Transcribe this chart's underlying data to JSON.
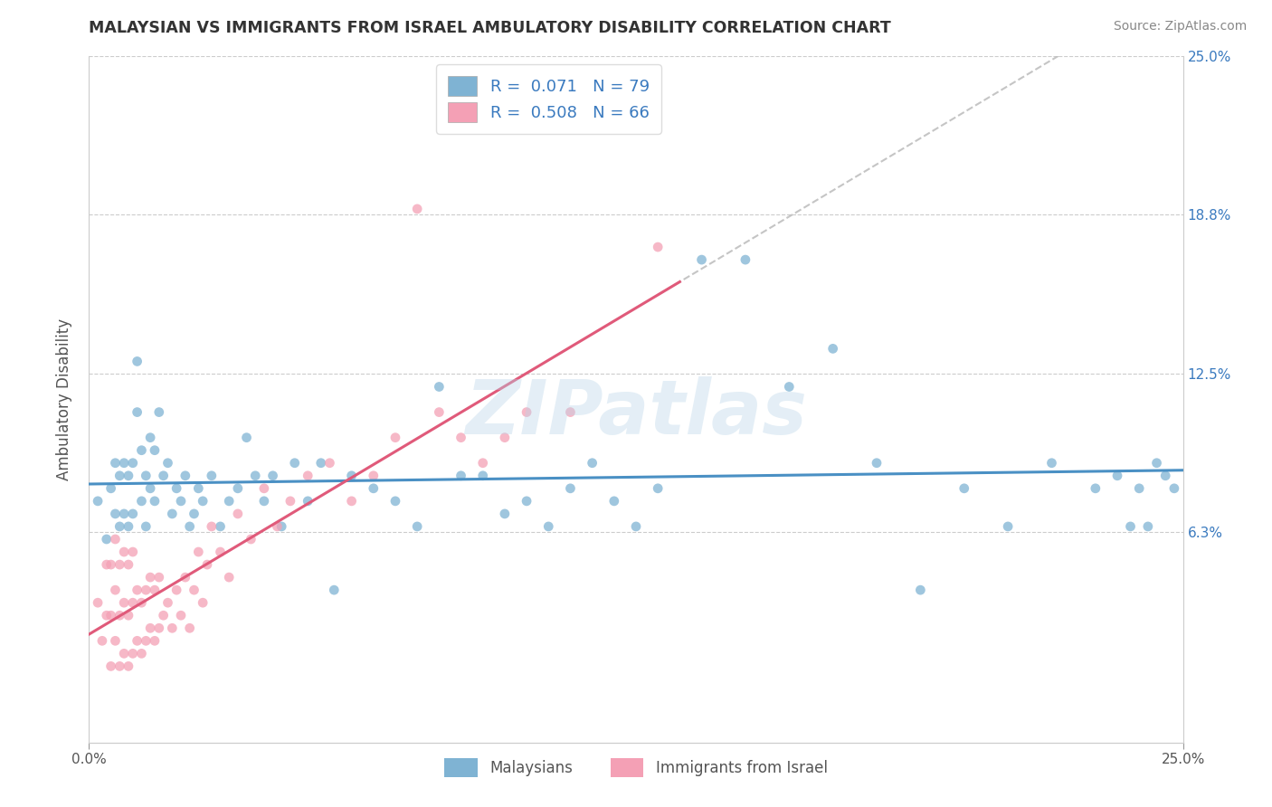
{
  "title": "MALAYSIAN VS IMMIGRANTS FROM ISRAEL AMBULATORY DISABILITY CORRELATION CHART",
  "source": "Source: ZipAtlas.com",
  "ylabel": "Ambulatory Disability",
  "xmin": 0.0,
  "xmax": 0.25,
  "ymin": -0.02,
  "ymax": 0.25,
  "ytick_values": [
    0.063,
    0.125,
    0.188,
    0.25
  ],
  "ytick_labels": [
    "6.3%",
    "12.5%",
    "18.8%",
    "25.0%"
  ],
  "legend_label1": "Malaysians",
  "legend_label2": "Immigrants from Israel",
  "R1": 0.071,
  "N1": 79,
  "R2": 0.508,
  "N2": 66,
  "color_blue": "#7fb3d3",
  "color_pink": "#f4a0b5",
  "color_blue_line": "#4a90c4",
  "color_pink_line": "#e05a7a",
  "color_blue_text": "#3a7abf",
  "watermark": "ZIPatlas",
  "background_color": "#ffffff",
  "grid_color": "#cccccc",
  "blue_x": [
    0.002,
    0.004,
    0.005,
    0.006,
    0.006,
    0.007,
    0.007,
    0.008,
    0.008,
    0.009,
    0.009,
    0.01,
    0.01,
    0.011,
    0.011,
    0.012,
    0.012,
    0.013,
    0.013,
    0.014,
    0.014,
    0.015,
    0.015,
    0.016,
    0.017,
    0.018,
    0.019,
    0.02,
    0.021,
    0.022,
    0.023,
    0.024,
    0.025,
    0.026,
    0.028,
    0.03,
    0.032,
    0.034,
    0.036,
    0.038,
    0.04,
    0.042,
    0.044,
    0.047,
    0.05,
    0.053,
    0.056,
    0.06,
    0.065,
    0.07,
    0.075,
    0.08,
    0.085,
    0.09,
    0.095,
    0.1,
    0.105,
    0.11,
    0.115,
    0.12,
    0.125,
    0.13,
    0.14,
    0.15,
    0.16,
    0.17,
    0.18,
    0.19,
    0.2,
    0.21,
    0.22,
    0.23,
    0.235,
    0.238,
    0.24,
    0.242,
    0.244,
    0.246,
    0.248
  ],
  "blue_y": [
    0.075,
    0.06,
    0.08,
    0.07,
    0.09,
    0.065,
    0.085,
    0.07,
    0.09,
    0.065,
    0.085,
    0.07,
    0.09,
    0.11,
    0.13,
    0.095,
    0.075,
    0.085,
    0.065,
    0.08,
    0.1,
    0.095,
    0.075,
    0.11,
    0.085,
    0.09,
    0.07,
    0.08,
    0.075,
    0.085,
    0.065,
    0.07,
    0.08,
    0.075,
    0.085,
    0.065,
    0.075,
    0.08,
    0.1,
    0.085,
    0.075,
    0.085,
    0.065,
    0.09,
    0.075,
    0.09,
    0.04,
    0.085,
    0.08,
    0.075,
    0.065,
    0.12,
    0.085,
    0.085,
    0.07,
    0.075,
    0.065,
    0.08,
    0.09,
    0.075,
    0.065,
    0.08,
    0.17,
    0.17,
    0.12,
    0.135,
    0.09,
    0.04,
    0.08,
    0.065,
    0.09,
    0.08,
    0.085,
    0.065,
    0.08,
    0.065,
    0.09,
    0.085,
    0.08
  ],
  "pink_x": [
    0.002,
    0.003,
    0.004,
    0.004,
    0.005,
    0.005,
    0.005,
    0.006,
    0.006,
    0.006,
    0.007,
    0.007,
    0.007,
    0.008,
    0.008,
    0.008,
    0.009,
    0.009,
    0.009,
    0.01,
    0.01,
    0.01,
    0.011,
    0.011,
    0.012,
    0.012,
    0.013,
    0.013,
    0.014,
    0.014,
    0.015,
    0.015,
    0.016,
    0.016,
    0.017,
    0.018,
    0.019,
    0.02,
    0.021,
    0.022,
    0.023,
    0.024,
    0.025,
    0.026,
    0.027,
    0.028,
    0.03,
    0.032,
    0.034,
    0.037,
    0.04,
    0.043,
    0.046,
    0.05,
    0.055,
    0.06,
    0.065,
    0.07,
    0.075,
    0.08,
    0.085,
    0.09,
    0.095,
    0.1,
    0.11,
    0.13
  ],
  "pink_y": [
    0.035,
    0.02,
    0.03,
    0.05,
    0.01,
    0.03,
    0.05,
    0.02,
    0.04,
    0.06,
    0.01,
    0.03,
    0.05,
    0.015,
    0.035,
    0.055,
    0.01,
    0.03,
    0.05,
    0.015,
    0.035,
    0.055,
    0.02,
    0.04,
    0.015,
    0.035,
    0.02,
    0.04,
    0.025,
    0.045,
    0.02,
    0.04,
    0.025,
    0.045,
    0.03,
    0.035,
    0.025,
    0.04,
    0.03,
    0.045,
    0.025,
    0.04,
    0.055,
    0.035,
    0.05,
    0.065,
    0.055,
    0.045,
    0.07,
    0.06,
    0.08,
    0.065,
    0.075,
    0.085,
    0.09,
    0.075,
    0.085,
    0.1,
    0.19,
    0.11,
    0.1,
    0.09,
    0.1,
    0.11,
    0.11,
    0.175
  ]
}
